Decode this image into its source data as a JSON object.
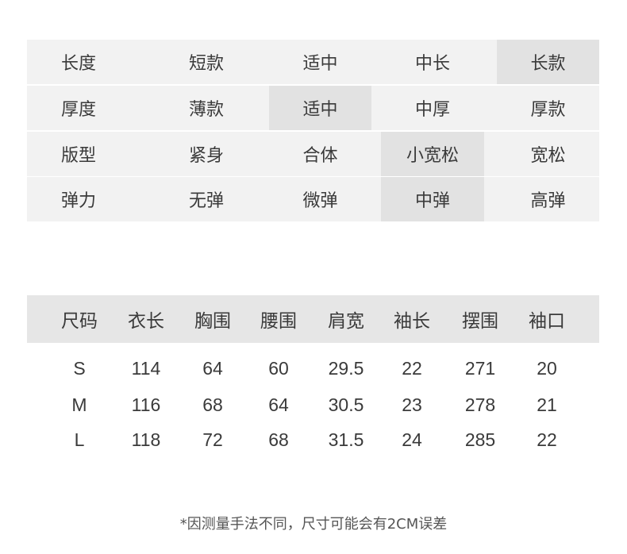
{
  "attributes": [
    {
      "label": "长度",
      "options": [
        "短款",
        "适中",
        "中长",
        "长款"
      ],
      "selected": "长款"
    },
    {
      "label": "厚度",
      "options": [
        "薄款",
        "适中",
        "中厚",
        "厚款"
      ],
      "selected": "适中"
    },
    {
      "label": "版型",
      "options": [
        "紧身",
        "合体",
        "小宽松",
        "宽松"
      ],
      "selected": "小宽松"
    },
    {
      "label": "弹力",
      "options": [
        "无弹",
        "微弹",
        "中弹",
        "高弹"
      ],
      "selected": "中弹"
    }
  ],
  "size_table": {
    "headers": [
      "尺码",
      "衣长",
      "胸围",
      "腰围",
      "肩宽",
      "袖长",
      "摆围",
      "袖口"
    ],
    "rows": [
      [
        "S",
        "114",
        "64",
        "60",
        "29.5",
        "22",
        "271",
        "20"
      ],
      [
        "M",
        "116",
        "68",
        "64",
        "30.5",
        "23",
        "278",
        "21"
      ],
      [
        "L",
        "118",
        "72",
        "68",
        "31.5",
        "24",
        "285",
        "22"
      ]
    ]
  },
  "note": "*因测量手法不同，尺寸可能会有2CM误差",
  "colors": {
    "cell_bg": "#f2f2f2",
    "selected_bg": "#e2e2e2",
    "header_bg": "#e6e6e6",
    "text": "#3a3a3a"
  }
}
